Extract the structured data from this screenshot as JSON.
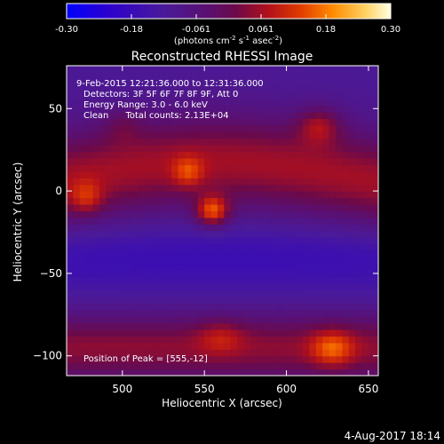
{
  "chart_data": {
    "type": "heatmap",
    "title": "Reconstructed RHESSI Image",
    "xlabel": "Heliocentric X (arcsec)",
    "ylabel": "Heliocentric Y (arcsec)",
    "xlim": [
      466,
      656
    ],
    "ylim": [
      -112,
      76
    ],
    "x_ticks": [
      500,
      550,
      600,
      650
    ],
    "y_ticks": [
      -100,
      -50,
      0,
      50
    ],
    "colorbar": {
      "ticks": [
        "-0.30",
        "-0.18",
        "-0.061",
        "0.061",
        "0.18",
        "0.30"
      ],
      "range": [
        -0.3,
        0.3
      ],
      "units_main": "(photons cm",
      "units_sup1": "-2",
      "units_mid": " s",
      "units_sup2": "-1",
      "units_tail": " asec",
      "units_sup3": "-2",
      "units_close": ")"
    },
    "annotations": {
      "time": "9-Feb-2015 12:21:36.000 to 12:31:36.000",
      "detectors": "Detectors: 3F 5F 6F 7F 8F 9F, Att 0",
      "energy": "Energy Range: 3.0 - 6.0 keV",
      "clean": "Clean      Total counts: 2.13E+04",
      "peak": "Position of Peak = [555,-12]"
    },
    "peak": {
      "x": 555,
      "y": -12,
      "value": 0.3
    },
    "blobs": [
      {
        "x": 555,
        "y": -12,
        "amp": 0.22,
        "sx": 10,
        "sy": 9
      },
      {
        "x": 540,
        "y": 12,
        "amp": 0.1,
        "sx": 9,
        "sy": 9
      },
      {
        "x": 478,
        "y": -4,
        "amp": 0.1,
        "sx": 10,
        "sy": 10
      },
      {
        "x": 620,
        "y": 40,
        "amp": 0.12,
        "sx": 13,
        "sy": 11
      },
      {
        "x": 628,
        "y": -95,
        "amp": 0.13,
        "sx": 13,
        "sy": 11
      },
      {
        "x": 560,
        "y": -88,
        "amp": 0.07,
        "sx": 14,
        "sy": 10
      },
      {
        "x": 500,
        "y": 40,
        "amp": 0.05,
        "sx": 12,
        "sy": 10
      }
    ],
    "date_stamp": "4-Aug-2017 18:14"
  }
}
